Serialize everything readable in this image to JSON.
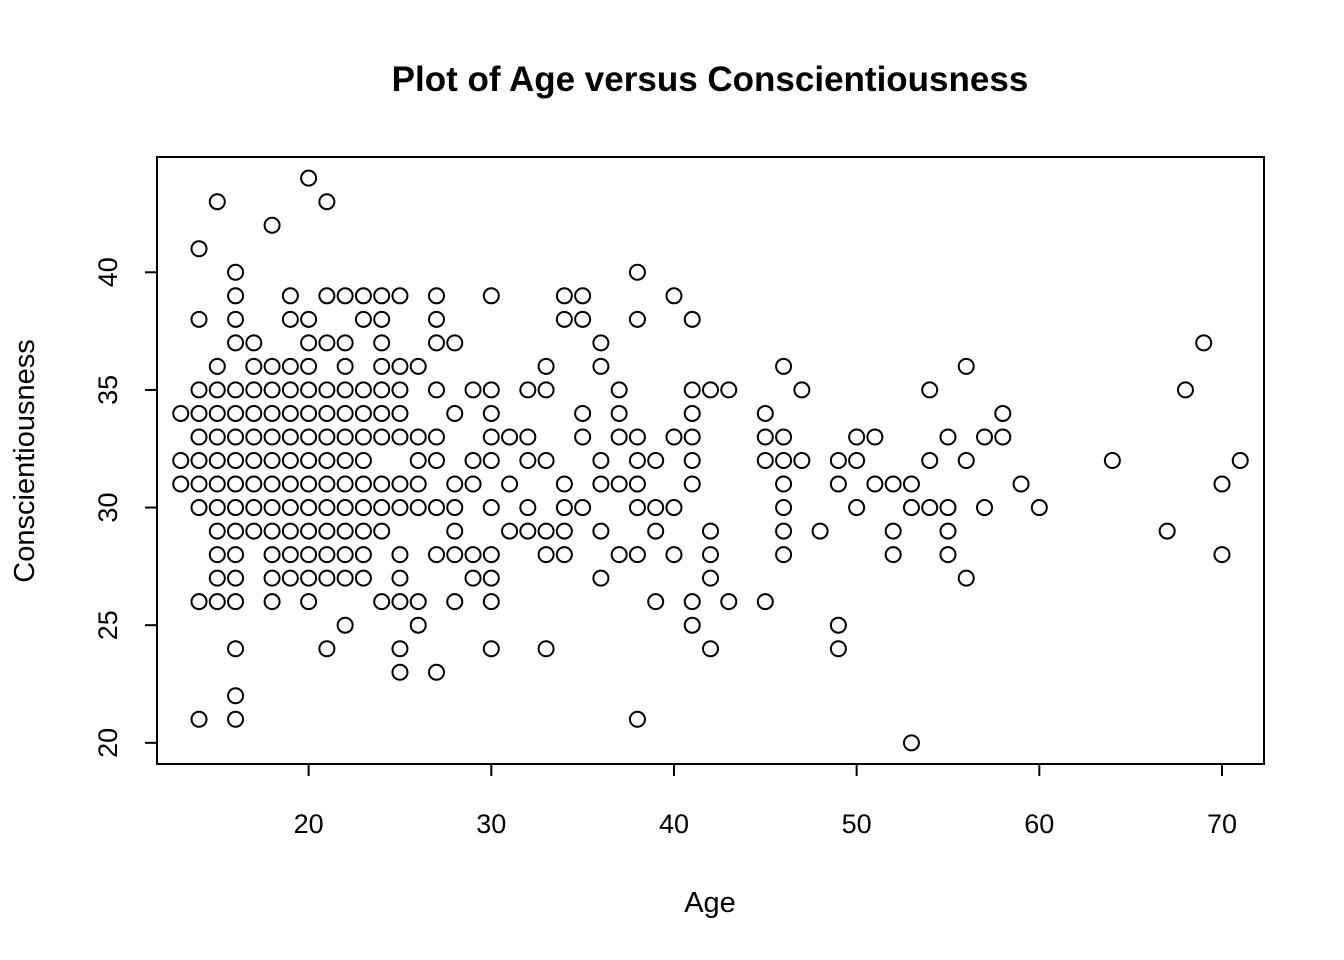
{
  "chart_data": {
    "type": "scatter",
    "title": "Plot of Age versus Conscientiousness",
    "xlabel": "Age",
    "ylabel": "Conscientiousness",
    "xlim": [
      11.7,
      72.3
    ],
    "ylim": [
      19.1,
      44.9
    ],
    "xticks": [
      20,
      30,
      40,
      50,
      60,
      70
    ],
    "yticks": [
      20,
      25,
      30,
      35,
      40
    ],
    "grid": false,
    "point_style": "open-circle",
    "colors": {
      "point": "#000000",
      "axis": "#000000",
      "background": "#ffffff"
    },
    "points": [
      [
        13,
        34
      ],
      [
        13,
        32
      ],
      [
        13,
        31
      ],
      [
        14,
        41
      ],
      [
        14,
        38
      ],
      [
        14,
        35
      ],
      [
        14,
        34
      ],
      [
        14,
        33
      ],
      [
        14,
        32
      ],
      [
        14,
        31
      ],
      [
        14,
        30
      ],
      [
        14,
        26
      ],
      [
        14,
        21
      ],
      [
        15,
        43
      ],
      [
        15,
        36
      ],
      [
        15,
        35
      ],
      [
        15,
        34
      ],
      [
        15,
        33
      ],
      [
        15,
        32
      ],
      [
        15,
        31
      ],
      [
        15,
        30
      ],
      [
        15,
        29
      ],
      [
        15,
        28
      ],
      [
        15,
        27
      ],
      [
        15,
        26
      ],
      [
        16,
        40
      ],
      [
        16,
        39
      ],
      [
        16,
        38
      ],
      [
        16,
        37
      ],
      [
        16,
        35
      ],
      [
        16,
        34
      ],
      [
        16,
        33
      ],
      [
        16,
        32
      ],
      [
        16,
        31
      ],
      [
        16,
        30
      ],
      [
        16,
        29
      ],
      [
        16,
        28
      ],
      [
        16,
        27
      ],
      [
        16,
        26
      ],
      [
        16,
        24
      ],
      [
        16,
        22
      ],
      [
        16,
        21
      ],
      [
        17,
        37
      ],
      [
        17,
        36
      ],
      [
        17,
        35
      ],
      [
        17,
        34
      ],
      [
        17,
        33
      ],
      [
        17,
        32
      ],
      [
        17,
        31
      ],
      [
        17,
        30
      ],
      [
        17,
        29
      ],
      [
        18,
        42
      ],
      [
        18,
        36
      ],
      [
        18,
        35
      ],
      [
        18,
        34
      ],
      [
        18,
        33
      ],
      [
        18,
        32
      ],
      [
        18,
        31
      ],
      [
        18,
        30
      ],
      [
        18,
        29
      ],
      [
        18,
        28
      ],
      [
        18,
        27
      ],
      [
        18,
        26
      ],
      [
        19,
        39
      ],
      [
        19,
        38
      ],
      [
        19,
        36
      ],
      [
        19,
        35
      ],
      [
        19,
        34
      ],
      [
        19,
        33
      ],
      [
        19,
        32
      ],
      [
        19,
        31
      ],
      [
        19,
        30
      ],
      [
        19,
        29
      ],
      [
        19,
        28
      ],
      [
        19,
        27
      ],
      [
        20,
        44
      ],
      [
        20,
        38
      ],
      [
        20,
        37
      ],
      [
        20,
        36
      ],
      [
        20,
        35
      ],
      [
        20,
        34
      ],
      [
        20,
        33
      ],
      [
        20,
        32
      ],
      [
        20,
        31
      ],
      [
        20,
        30
      ],
      [
        20,
        29
      ],
      [
        20,
        28
      ],
      [
        20,
        27
      ],
      [
        20,
        26
      ],
      [
        21,
        43
      ],
      [
        21,
        39
      ],
      [
        21,
        37
      ],
      [
        21,
        35
      ],
      [
        21,
        34
      ],
      [
        21,
        33
      ],
      [
        21,
        32
      ],
      [
        21,
        31
      ],
      [
        21,
        30
      ],
      [
        21,
        29
      ],
      [
        21,
        28
      ],
      [
        21,
        27
      ],
      [
        21,
        24
      ],
      [
        22,
        39
      ],
      [
        22,
        37
      ],
      [
        22,
        36
      ],
      [
        22,
        35
      ],
      [
        22,
        34
      ],
      [
        22,
        33
      ],
      [
        22,
        32
      ],
      [
        22,
        31
      ],
      [
        22,
        30
      ],
      [
        22,
        29
      ],
      [
        22,
        28
      ],
      [
        22,
        27
      ],
      [
        22,
        25
      ],
      [
        23,
        39
      ],
      [
        23,
        38
      ],
      [
        23,
        35
      ],
      [
        23,
        34
      ],
      [
        23,
        33
      ],
      [
        23,
        32
      ],
      [
        23,
        31
      ],
      [
        23,
        30
      ],
      [
        23,
        29
      ],
      [
        23,
        28
      ],
      [
        23,
        27
      ],
      [
        24,
        39
      ],
      [
        24,
        38
      ],
      [
        24,
        37
      ],
      [
        24,
        36
      ],
      [
        24,
        35
      ],
      [
        24,
        34
      ],
      [
        24,
        33
      ],
      [
        24,
        31
      ],
      [
        24,
        30
      ],
      [
        24,
        29
      ],
      [
        24,
        26
      ],
      [
        25,
        39
      ],
      [
        25,
        36
      ],
      [
        25,
        35
      ],
      [
        25,
        34
      ],
      [
        25,
        33
      ],
      [
        25,
        31
      ],
      [
        25,
        30
      ],
      [
        25,
        28
      ],
      [
        25,
        27
      ],
      [
        25,
        26
      ],
      [
        25,
        24
      ],
      [
        25,
        23
      ],
      [
        26,
        36
      ],
      [
        26,
        33
      ],
      [
        26,
        32
      ],
      [
        26,
        31
      ],
      [
        26,
        30
      ],
      [
        26,
        26
      ],
      [
        26,
        25
      ],
      [
        27,
        39
      ],
      [
        27,
        38
      ],
      [
        27,
        37
      ],
      [
        27,
        35
      ],
      [
        27,
        33
      ],
      [
        27,
        32
      ],
      [
        27,
        30
      ],
      [
        27,
        28
      ],
      [
        27,
        23
      ],
      [
        28,
        37
      ],
      [
        28,
        34
      ],
      [
        28,
        31
      ],
      [
        28,
        30
      ],
      [
        28,
        29
      ],
      [
        28,
        28
      ],
      [
        28,
        26
      ],
      [
        29,
        35
      ],
      [
        29,
        32
      ],
      [
        29,
        31
      ],
      [
        29,
        28
      ],
      [
        29,
        27
      ],
      [
        30,
        39
      ],
      [
        30,
        35
      ],
      [
        30,
        34
      ],
      [
        30,
        33
      ],
      [
        30,
        32
      ],
      [
        30,
        30
      ],
      [
        30,
        28
      ],
      [
        30,
        27
      ],
      [
        30,
        26
      ],
      [
        30,
        24
      ],
      [
        31,
        33
      ],
      [
        31,
        31
      ],
      [
        31,
        29
      ],
      [
        32,
        35
      ],
      [
        32,
        33
      ],
      [
        32,
        32
      ],
      [
        32,
        30
      ],
      [
        32,
        29
      ],
      [
        33,
        36
      ],
      [
        33,
        35
      ],
      [
        33,
        32
      ],
      [
        33,
        29
      ],
      [
        33,
        28
      ],
      [
        33,
        24
      ],
      [
        34,
        39
      ],
      [
        34,
        38
      ],
      [
        34,
        31
      ],
      [
        34,
        30
      ],
      [
        34,
        29
      ],
      [
        34,
        28
      ],
      [
        35,
        39
      ],
      [
        35,
        38
      ],
      [
        35,
        34
      ],
      [
        35,
        33
      ],
      [
        35,
        30
      ],
      [
        36,
        37
      ],
      [
        36,
        36
      ],
      [
        36,
        32
      ],
      [
        36,
        31
      ],
      [
        36,
        29
      ],
      [
        36,
        27
      ],
      [
        37,
        35
      ],
      [
        37,
        34
      ],
      [
        37,
        33
      ],
      [
        37,
        31
      ],
      [
        37,
        28
      ],
      [
        38,
        40
      ],
      [
        38,
        38
      ],
      [
        38,
        33
      ],
      [
        38,
        32
      ],
      [
        38,
        31
      ],
      [
        38,
        30
      ],
      [
        38,
        28
      ],
      [
        38,
        21
      ],
      [
        39,
        32
      ],
      [
        39,
        30
      ],
      [
        39,
        29
      ],
      [
        39,
        26
      ],
      [
        40,
        39
      ],
      [
        40,
        33
      ],
      [
        40,
        30
      ],
      [
        40,
        28
      ],
      [
        41,
        38
      ],
      [
        41,
        35
      ],
      [
        41,
        34
      ],
      [
        41,
        33
      ],
      [
        41,
        32
      ],
      [
        41,
        31
      ],
      [
        41,
        26
      ],
      [
        41,
        25
      ],
      [
        42,
        35
      ],
      [
        42,
        29
      ],
      [
        42,
        28
      ],
      [
        42,
        27
      ],
      [
        42,
        24
      ],
      [
        43,
        35
      ],
      [
        43,
        26
      ],
      [
        45,
        34
      ],
      [
        45,
        33
      ],
      [
        45,
        32
      ],
      [
        45,
        26
      ],
      [
        46,
        36
      ],
      [
        46,
        33
      ],
      [
        46,
        32
      ],
      [
        46,
        31
      ],
      [
        46,
        30
      ],
      [
        46,
        29
      ],
      [
        46,
        28
      ],
      [
        47,
        35
      ],
      [
        47,
        32
      ],
      [
        48,
        29
      ],
      [
        49,
        32
      ],
      [
        49,
        31
      ],
      [
        49,
        25
      ],
      [
        49,
        24
      ],
      [
        50,
        33
      ],
      [
        50,
        32
      ],
      [
        50,
        30
      ],
      [
        51,
        33
      ],
      [
        51,
        31
      ],
      [
        52,
        31
      ],
      [
        52,
        29
      ],
      [
        52,
        28
      ],
      [
        53,
        31
      ],
      [
        53,
        30
      ],
      [
        53,
        20
      ],
      [
        54,
        35
      ],
      [
        54,
        32
      ],
      [
        54,
        30
      ],
      [
        55,
        33
      ],
      [
        55,
        30
      ],
      [
        55,
        29
      ],
      [
        55,
        28
      ],
      [
        56,
        36
      ],
      [
        56,
        32
      ],
      [
        56,
        27
      ],
      [
        57,
        33
      ],
      [
        57,
        30
      ],
      [
        58,
        34
      ],
      [
        58,
        33
      ],
      [
        59,
        31
      ],
      [
        60,
        30
      ],
      [
        64,
        32
      ],
      [
        67,
        29
      ],
      [
        68,
        35
      ],
      [
        69,
        37
      ],
      [
        70,
        31
      ],
      [
        70,
        28
      ],
      [
        71,
        32
      ]
    ]
  }
}
